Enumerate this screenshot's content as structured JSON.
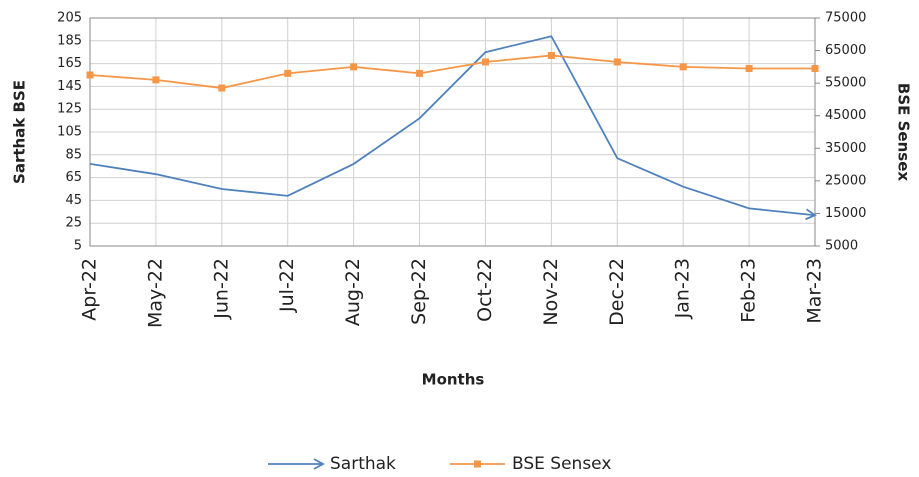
{
  "chart_data": {
    "type": "line",
    "categories": [
      "Apr-22",
      "May-22",
      "Jun-22",
      "Jul-22",
      "Aug-22",
      "Sep-22",
      "Oct-22",
      "Nov-22",
      "Dec-22",
      "Jan-23",
      "Feb-23",
      "Mar-23"
    ],
    "series": [
      {
        "name": "Sarthak",
        "color": "#4f81bd",
        "values": [
          77,
          68,
          55,
          49,
          77,
          117,
          175,
          189,
          82,
          57,
          38,
          32
        ]
      },
      {
        "name": "BSE Sensex",
        "color": "#f79646",
        "axis": "y2",
        "values": [
          57500,
          56000,
          53500,
          58000,
          60000,
          58000,
          61500,
          63500,
          61500,
          60000,
          59500,
          59500
        ]
      }
    ],
    "ylabel": "Sarthak BSE",
    "y2label": "BSE Sensex",
    "xlabel": "Months",
    "ylim": [
      5,
      205
    ],
    "yticks": [
      5,
      25,
      45,
      65,
      85,
      105,
      125,
      145,
      165,
      185,
      205
    ],
    "y2lim": [
      5000,
      75000
    ],
    "y2ticks": [
      5000,
      15000,
      25000,
      35000,
      45000,
      55000,
      65000,
      75000
    ],
    "grid": true,
    "legend": "bottom"
  }
}
